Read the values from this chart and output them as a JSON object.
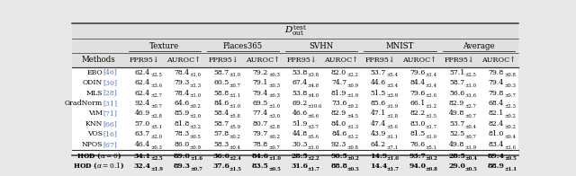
{
  "title": "$D_{\\mathrm{out}}^{\\mathrm{test}}$",
  "col_groups": [
    "Texture",
    "Places365",
    "SVHN",
    "MNIST",
    "Average"
  ],
  "methods": [
    [
      "EBO",
      "46"
    ],
    [
      "ODIN",
      "30"
    ],
    [
      "MLS",
      "28"
    ],
    [
      "GradNorm",
      "31"
    ],
    [
      "ViM",
      "71"
    ],
    [
      "KNN",
      "66"
    ],
    [
      "VOS",
      "16"
    ],
    [
      "NPOS",
      "67"
    ],
    [
      "HOD ($\\alpha = 0$)",
      ""
    ],
    [
      "HOD ($\\alpha = 0.1$)",
      ""
    ]
  ],
  "data": [
    [
      "62.4",
      "2.5",
      "78.4",
      "1.0",
      "58.7",
      "1.0",
      "79.2",
      "0.3",
      "53.8",
      "3.8",
      "82.0",
      "2.2",
      "53.7",
      "5.4",
      "79.6",
      "1.4",
      "57.1",
      "2.5",
      "79.8",
      "0.8"
    ],
    [
      "62.4",
      "3.6",
      "79.3",
      "1.3",
      "60.5",
      "0.7",
      "79.1",
      "0.3",
      "67.4",
      "4.8",
      "74.7",
      "0.9",
      "44.6",
      "3.4",
      "84.4",
      "1.4",
      "58.7",
      "1.0",
      "79.4",
      "0.3"
    ],
    [
      "62.4",
      "2.7",
      "78.4",
      "1.0",
      "58.8",
      "1.1",
      "79.4",
      "0.3",
      "53.8",
      "4.0",
      "81.9",
      "1.9",
      "51.5",
      "3.9",
      "79.6",
      "1.6",
      "56.6",
      "1.6",
      "79.8",
      "0.7"
    ],
    [
      "92.4",
      "0.7",
      "64.6",
      "0.2",
      "84.6",
      "1.0",
      "69.5",
      "1.0",
      "69.2",
      "10.6",
      "73.6",
      "9.2",
      "85.6",
      "1.9",
      "66.1",
      "1.2",
      "82.9",
      "2.7",
      "68.4",
      "2.3"
    ],
    [
      "46.9",
      "2.8",
      "85.9",
      "1.0",
      "58.4",
      "5.8",
      "77.4",
      "3.0",
      "46.6",
      "6.6",
      "82.9",
      "4.5",
      "47.1",
      "1.8",
      "82.2",
      "1.5",
      "49.8",
      "0.7",
      "82.1",
      "0.2"
    ],
    [
      "57.0",
      "5.1",
      "81.8",
      "3.2",
      "58.7",
      "5.9",
      "80.7",
      "2.8",
      "51.9",
      "3.7",
      "84.0",
      "1.3",
      "47.4",
      "5.6",
      "83.0",
      "1.7",
      "53.7",
      "0.4",
      "82.4",
      "0.2"
    ],
    [
      "63.7",
      "2.0",
      "78.3",
      "0.5",
      "57.8",
      "0.2",
      "79.7",
      "0.2",
      "44.8",
      "5.6",
      "84.6",
      "3.2",
      "43.9",
      "1.1",
      "81.5",
      "1.0",
      "52.5",
      "0.7",
      "81.0",
      "0.4"
    ],
    [
      "46.4",
      "0.3",
      "86.0",
      "0.9",
      "58.3",
      "0.4",
      "78.8",
      "0.7",
      "30.3",
      "1.0",
      "92.3",
      "0.8",
      "64.2",
      "7.1",
      "76.6",
      "5.1",
      "49.8",
      "1.9",
      "83.4",
      "1.6"
    ],
    [
      "34.1",
      "2.5",
      "89.0",
      "1.6",
      "36.6",
      "2.4",
      "84.6",
      "1.0",
      "28.5",
      "2.2",
      "90.5",
      "0.2",
      "14.9",
      "1.0",
      "93.7",
      "0.2",
      "28.5",
      "0.4",
      "89.4",
      "0.5"
    ],
    [
      "32.4",
      "1.9",
      "89.3",
      "0.7",
      "37.6",
      "1.5",
      "83.5",
      "0.5",
      "31.6",
      "1.7",
      "88.8",
      "0.5",
      "14.4",
      "1.7",
      "94.0",
      "0.8",
      "29.0",
      "0.5",
      "88.9",
      "1.1"
    ]
  ],
  "bold_rows": [
    8,
    9
  ],
  "blue_color": "#5577bb"
}
